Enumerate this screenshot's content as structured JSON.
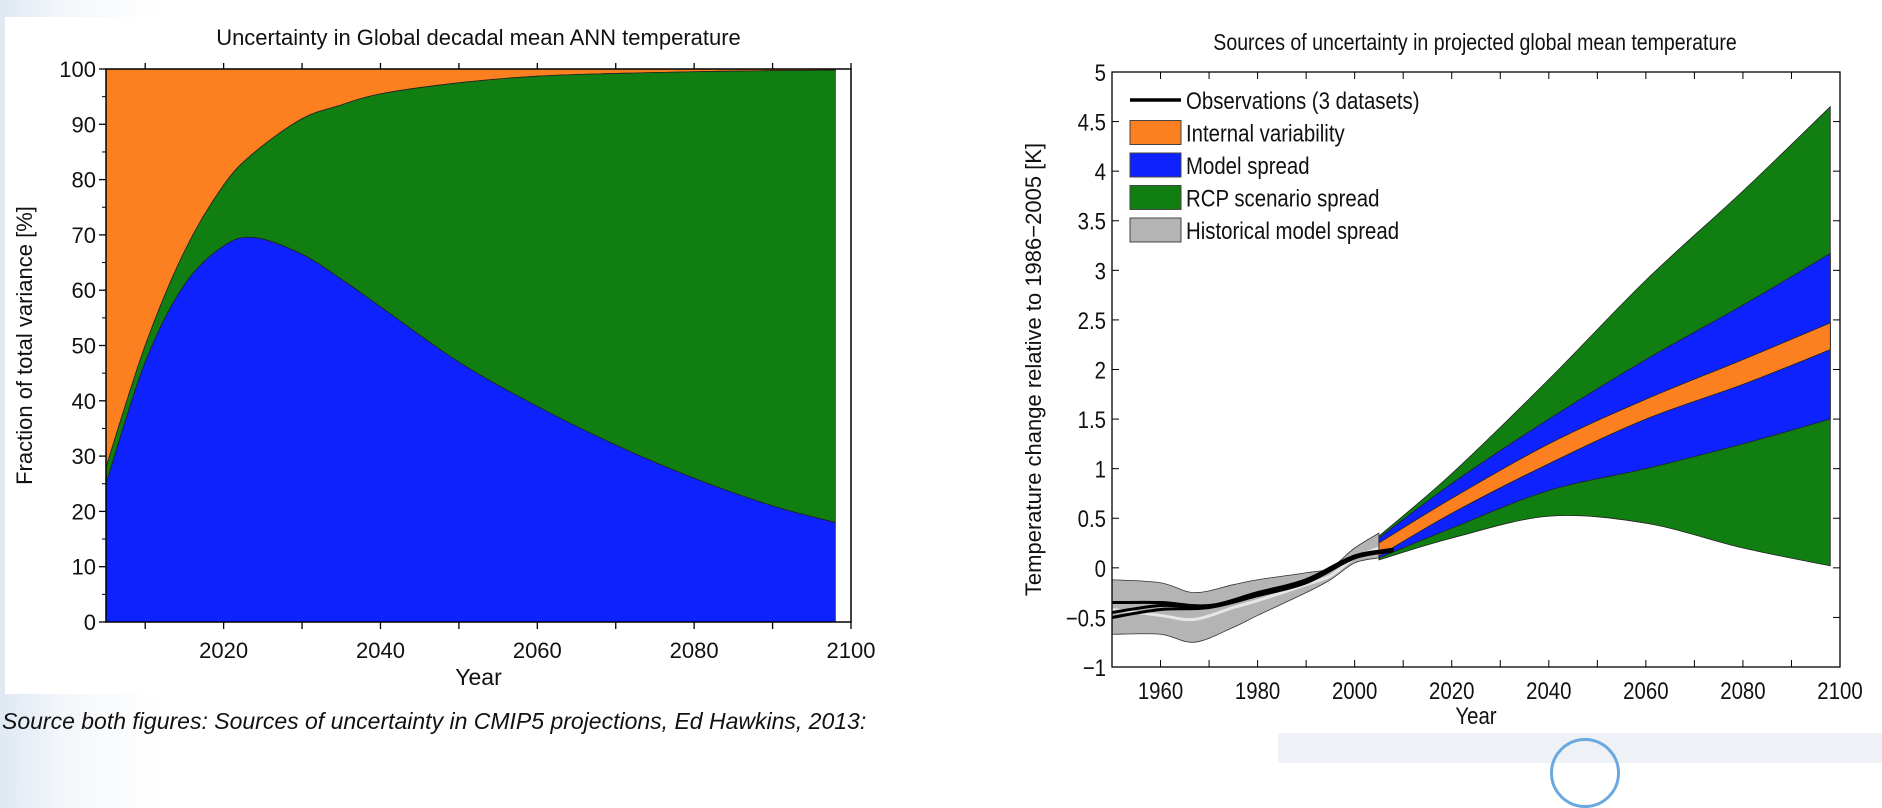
{
  "caption": "Source both figures: Sources of uncertainty in CMIP5 projections, Ed Hawkins, 2013:",
  "chart_data": [
    {
      "type": "area",
      "stacked": true,
      "title": "Uncertainty in Global decadal mean ANN temperature",
      "xlabel": "Year",
      "ylabel": "Fraction of total variance  [%]",
      "xlim": [
        2005,
        2100
      ],
      "ylim": [
        0,
        100
      ],
      "xticks": [
        2020,
        2040,
        2060,
        2080,
        2100
      ],
      "yticks": [
        0,
        10,
        20,
        30,
        40,
        50,
        60,
        70,
        80,
        90,
        100
      ],
      "colors": {
        "internal": "#fd8020",
        "scenario": "#117e12",
        "model": "#0d22fd"
      },
      "x": [
        2005,
        2010,
        2015,
        2020,
        2024,
        2030,
        2035,
        2040,
        2050,
        2060,
        2070,
        2080,
        2090,
        2098
      ],
      "model_upper": [
        25,
        47,
        61,
        68,
        69.5,
        66.5,
        62,
        57,
        47,
        39,
        32,
        26,
        21,
        18
      ],
      "scenario_upper": [
        28,
        50,
        67,
        79,
        85,
        91,
        93.5,
        95.5,
        97.5,
        98.7,
        99.2,
        99.5,
        99.7,
        99.8
      ],
      "internal_upper": [
        100,
        100,
        100,
        100,
        100,
        100,
        100,
        100,
        100,
        100,
        100,
        100,
        100,
        100
      ]
    },
    {
      "type": "area",
      "title": "Sources of uncertainty in projected global mean temperature",
      "xlabel": "Year",
      "ylabel": "Temperature change relative to 1986−2005 [K]",
      "xlim": [
        1950,
        2100
      ],
      "ylim": [
        -1,
        5
      ],
      "xticks": [
        1960,
        1980,
        2000,
        2020,
        2040,
        2060,
        2080,
        2100
      ],
      "yticks": [
        -1,
        -0.5,
        0,
        0.5,
        1,
        1.5,
        2,
        2.5,
        3,
        3.5,
        4,
        4.5,
        5
      ],
      "ytick_labels": [
        "−1",
        "−0.5",
        "0",
        "0.5",
        "1",
        "1.5",
        "2",
        "2.5",
        "3",
        "3.5",
        "4",
        "4.5",
        "5"
      ],
      "legend_position": "top-left",
      "legend": [
        {
          "label": "Observations (3 datasets)",
          "kind": "line",
          "color": "#000000"
        },
        {
          "label": "Internal variability",
          "kind": "patch",
          "color": "#fd8020"
        },
        {
          "label": "Model spread",
          "kind": "patch",
          "color": "#0d22fd"
        },
        {
          "label": "RCP scenario spread",
          "kind": "patch",
          "color": "#117e12"
        },
        {
          "label": "Historical model spread",
          "kind": "patch",
          "color": "#b4b4b4"
        }
      ],
      "projection": {
        "x": [
          2005,
          2020,
          2040,
          2060,
          2080,
          2098
        ],
        "scenario_upper": [
          0.32,
          0.95,
          1.9,
          2.9,
          3.8,
          4.65
        ],
        "scenario_lower": [
          0.08,
          0.3,
          0.52,
          0.45,
          0.2,
          0.02
        ],
        "model_upper": [
          0.3,
          0.85,
          1.5,
          2.1,
          2.65,
          3.17
        ],
        "model_lower": [
          0.1,
          0.4,
          0.78,
          1.0,
          1.25,
          1.5
        ],
        "internal_upper": [
          0.25,
          0.7,
          1.25,
          1.7,
          2.1,
          2.47
        ],
        "internal_lower": [
          0.12,
          0.55,
          1.05,
          1.5,
          1.85,
          2.2
        ]
      },
      "historical": {
        "x": [
          1950,
          1960,
          1967,
          1975,
          1980,
          1990,
          1995,
          2000,
          2005
        ],
        "upper": [
          -0.12,
          -0.15,
          -0.25,
          -0.17,
          -0.12,
          -0.05,
          0.0,
          0.2,
          0.35
        ],
        "lower": [
          -0.67,
          -0.67,
          -0.75,
          -0.6,
          -0.48,
          -0.25,
          -0.12,
          0.05,
          0.1
        ],
        "mean": [
          -0.42,
          -0.48,
          -0.52,
          -0.4,
          -0.33,
          -0.17,
          -0.08,
          0.1,
          0.2
        ]
      },
      "observations": {
        "x": [
          1950,
          1960,
          1970,
          1980,
          1990,
          2000,
          2008
        ],
        "series": [
          [
            -0.35,
            -0.35,
            -0.38,
            -0.25,
            -0.12,
            0.12,
            0.18
          ],
          [
            -0.5,
            -0.42,
            -0.4,
            -0.28,
            -0.15,
            0.1,
            0.17
          ],
          [
            -0.45,
            -0.38,
            -0.39,
            -0.27,
            -0.13,
            0.11,
            0.19
          ]
        ]
      }
    }
  ]
}
